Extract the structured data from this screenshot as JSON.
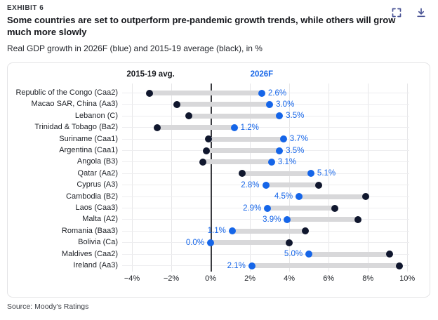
{
  "header": {
    "exhibit_label": "EXHIBIT 6",
    "title": "Some countries are set to outperform pre-pandemic growth trends, while others will grow much more slowly",
    "subtitle": "Real GDP growth in 2026F (blue) and 2015-19 average (black), in %"
  },
  "source": "Source: Moody's Ratings",
  "colors": {
    "accent_blue": "#1565e8",
    "dot_black": "#10172e",
    "connector_gray": "#d8d8da",
    "grid_gray": "#e6e6e8",
    "zero_line": "#3a3b40",
    "icon_indigo": "#4a5495"
  },
  "icons": {
    "fullscreen": "fullscreen-icon",
    "download": "download-icon"
  },
  "chart_data": {
    "type": "scatter",
    "variant": "dumbbell",
    "title": "Some countries are set to outperform pre-pandemic growth trends, while others will grow much more slowly",
    "units": "Real GDP growth, in %",
    "legend": {
      "avg_label": "2015-19 avg.",
      "forecast_label": "2026F",
      "avg_header_x": -3.05,
      "forecast_header_x": 2.6,
      "position": "top-inside"
    },
    "grid": true,
    "xlim": [
      -4.5,
      10.1
    ],
    "xticks": [
      -4,
      -2,
      0,
      2,
      4,
      6,
      8,
      10
    ],
    "xtick_labels": [
      "−4%",
      "−2%",
      "0%",
      "2%",
      "4%",
      "6%",
      "8%",
      "10%"
    ],
    "categories": [
      "Republic of the Congo (Caa2)",
      "Macao SAR, China (Aa3)",
      "Lebanon (C)",
      "Trinidad & Tobago (Ba2)",
      "Suriname (Caa1)",
      "Argentina (Caa1)",
      "Angola (B3)",
      "Qatar (Aa2)",
      "Cyprus (A3)",
      "Cambodia (B2)",
      "Laos (Caa3)",
      "Malta (A2)",
      "Romania (Baa3)",
      "Bolivia (Ca)",
      "Maldives (Caa2)",
      "Ireland (Aa3)"
    ],
    "series": [
      {
        "name": "2015-19 avg.",
        "color_key": "dot_black",
        "values": [
          -3.1,
          -1.7,
          -1.1,
          -2.7,
          -0.1,
          -0.2,
          -0.4,
          1.6,
          5.5,
          7.9,
          6.3,
          7.5,
          4.8,
          4.0,
          9.1,
          9.6
        ]
      },
      {
        "name": "2026F",
        "color_key": "accent_blue",
        "values": [
          2.6,
          3.0,
          3.5,
          1.2,
          3.7,
          3.5,
          3.1,
          5.1,
          2.8,
          4.5,
          2.9,
          3.9,
          1.1,
          0.0,
          5.0,
          2.1
        ]
      }
    ],
    "value_labels": [
      "2.6%",
      "3.0%",
      "3.5%",
      "1.2%",
      "3.7%",
      "3.5%",
      "3.1%",
      "5.1%",
      "2.8%",
      "4.5%",
      "2.9%",
      "3.9%",
      "1.1%",
      "0.0%",
      "5.0%",
      "2.1%"
    ]
  }
}
